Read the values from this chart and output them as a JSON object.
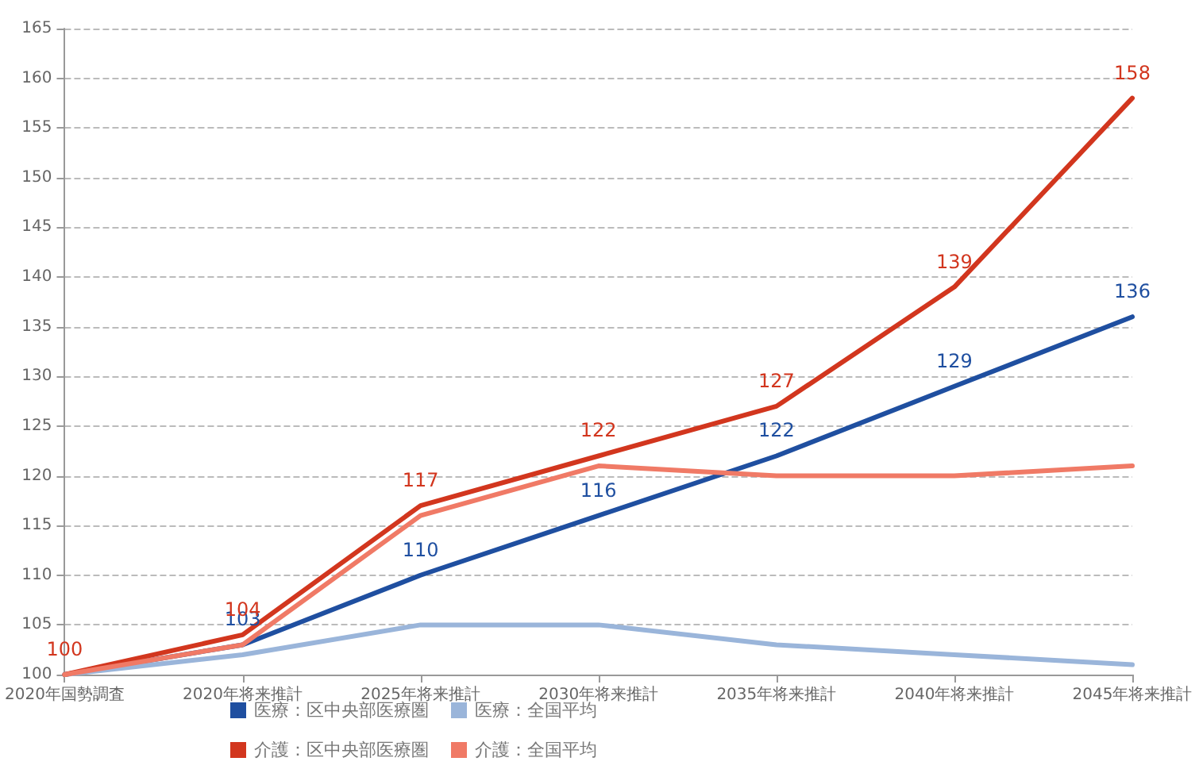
{
  "chart_data": {
    "type": "line",
    "categories": [
      "2020年国勢調査",
      "2020年将来推計",
      "2025年将来推計",
      "2030年将来推計",
      "2035年将来推計",
      "2040年将来推計",
      "2045年将来推計"
    ],
    "series": [
      {
        "name": "医療：区中央部医療圏",
        "color": "#1f4fa0",
        "values": [
          100,
          103,
          110,
          116,
          122,
          129,
          136
        ],
        "value_labels": [
          null,
          "103",
          "110",
          "116",
          "122",
          "129",
          "136"
        ]
      },
      {
        "name": "医療：全国平均",
        "color": "#9ab5da",
        "values": [
          100,
          102,
          105,
          105,
          103,
          102,
          101
        ]
      },
      {
        "name": "介護：区中央部医療圏",
        "color": "#d2361e",
        "values": [
          100,
          104,
          117,
          122,
          127,
          139,
          158
        ],
        "value_labels": [
          "100",
          "104",
          "117",
          "122",
          "127",
          "139",
          "158"
        ]
      },
      {
        "name": "介護：全国平均",
        "color": "#f07a66",
        "values": [
          100,
          103,
          116,
          121,
          120,
          120,
          121
        ]
      }
    ],
    "ylim": [
      100,
      165
    ],
    "yticks": [
      100,
      105,
      110,
      115,
      120,
      125,
      130,
      135,
      140,
      145,
      150,
      155,
      160,
      165
    ],
    "grid": "y",
    "legend": "bottom",
    "marker": "none",
    "line_style": "solid"
  }
}
